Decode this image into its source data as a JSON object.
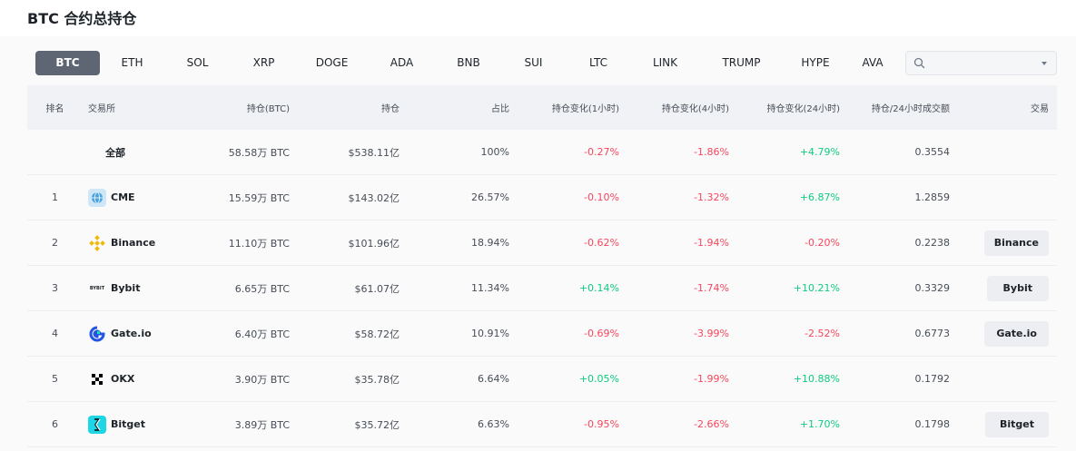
{
  "page": {
    "title": "BTC 合约总持仓"
  },
  "tabs": [
    {
      "label": "BTC",
      "active": true
    },
    {
      "label": "ETH"
    },
    {
      "label": "SOL"
    },
    {
      "label": "XRP"
    },
    {
      "label": "DOGE"
    },
    {
      "label": "ADA"
    },
    {
      "label": "BNB"
    },
    {
      "label": "SUI"
    },
    {
      "label": "LTC"
    },
    {
      "label": "LINK"
    },
    {
      "label": "TRUMP"
    },
    {
      "label": "HYPE"
    },
    {
      "label": "AVA"
    }
  ],
  "search": {
    "value": "",
    "icon": "search-icon"
  },
  "table": {
    "headers": {
      "rank": "排名",
      "exchange": "交易所",
      "oi_btc": "持仓(BTC)",
      "oi": "持仓",
      "share": "占比",
      "chg_1h": "持仓变化(1小时)",
      "chg_4h": "持仓变化(4小时)",
      "chg_24h": "持仓变化(24小时)",
      "ratio": "持仓/24小时成交额",
      "trade": "交易"
    },
    "total": {
      "label": "全部",
      "oi_btc": "58.58万 BTC",
      "oi": "$538.11亿",
      "share": "100%",
      "chg_1h": "-0.27%",
      "chg_4h": "-1.86%",
      "chg_24h": "+4.79%",
      "ratio": "0.3554"
    },
    "rows": [
      {
        "rank": "1",
        "exchange": "CME",
        "oi_btc": "15.59万 BTC",
        "oi": "$143.02亿",
        "share": "26.57%",
        "chg_1h": "-0.10%",
        "chg_4h": "-1.32%",
        "chg_24h": "+6.87%",
        "ratio": "1.2859",
        "trade": ""
      },
      {
        "rank": "2",
        "exchange": "Binance",
        "oi_btc": "11.10万 BTC",
        "oi": "$101.96亿",
        "share": "18.94%",
        "chg_1h": "-0.62%",
        "chg_4h": "-1.94%",
        "chg_24h": "-0.20%",
        "ratio": "0.2238",
        "trade": "Binance"
      },
      {
        "rank": "3",
        "exchange": "Bybit",
        "logo_text": "BYBIT",
        "oi_btc": "6.65万 BTC",
        "oi": "$61.07亿",
        "share": "11.34%",
        "chg_1h": "+0.14%",
        "chg_4h": "-1.74%",
        "chg_24h": "+10.21%",
        "ratio": "0.3329",
        "trade": "Bybit"
      },
      {
        "rank": "4",
        "exchange": "Gate.io",
        "oi_btc": "6.40万 BTC",
        "oi": "$58.72亿",
        "share": "10.91%",
        "chg_1h": "-0.69%",
        "chg_4h": "-3.99%",
        "chg_24h": "-2.52%",
        "ratio": "0.6773",
        "trade": "Gate.io"
      },
      {
        "rank": "5",
        "exchange": "OKX",
        "oi_btc": "3.90万 BTC",
        "oi": "$35.78亿",
        "share": "6.64%",
        "chg_1h": "+0.05%",
        "chg_4h": "-1.99%",
        "chg_24h": "+10.88%",
        "ratio": "0.1792",
        "trade": ""
      },
      {
        "rank": "6",
        "exchange": "Bitget",
        "oi_btc": "3.89万 BTC",
        "oi": "$35.72亿",
        "share": "6.63%",
        "chg_1h": "-0.95%",
        "chg_4h": "-2.66%",
        "chg_24h": "+1.70%",
        "ratio": "0.1798",
        "trade": "Bitget"
      }
    ]
  },
  "colors": {
    "positive": "#0ecb81",
    "negative": "#f6465d",
    "active_tab": "#5e6673"
  }
}
